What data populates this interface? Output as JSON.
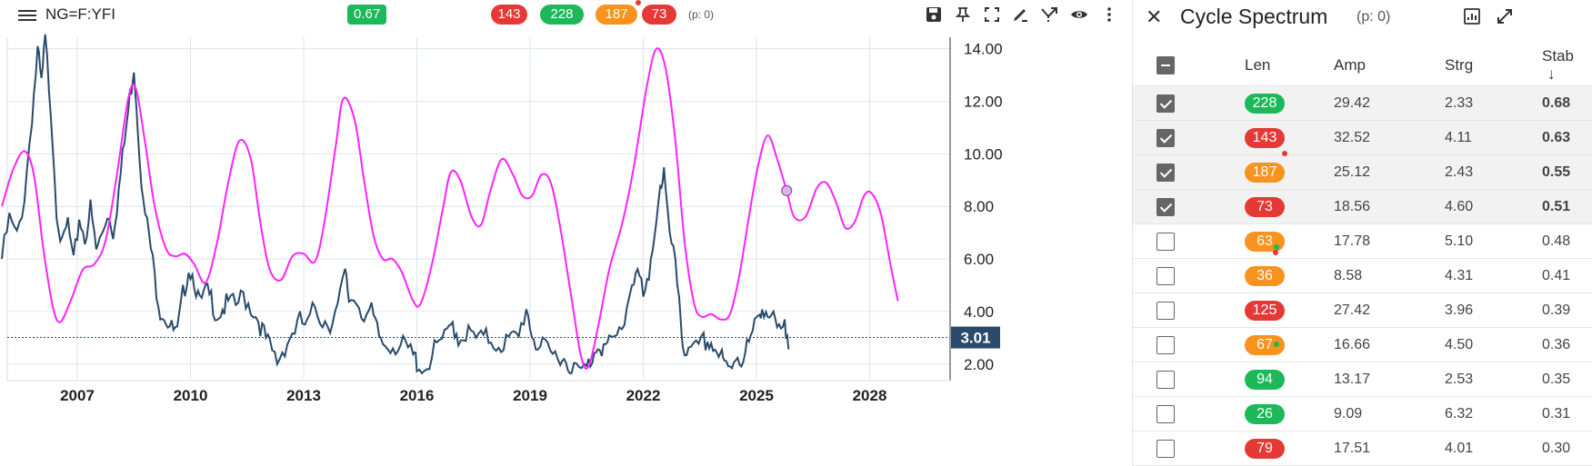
{
  "topbar": {
    "symbol": "NG=F:YFI",
    "score_badge": "0.67",
    "cycle_badges": [
      "143",
      "228",
      "187",
      "73"
    ],
    "cycle_badge_colors": [
      "#e53935",
      "#1cb85a",
      "#f7931e",
      "#e53935"
    ],
    "p_count": "(p: 0)",
    "tools": [
      "save-icon",
      "pin-icon",
      "fullscreen-icon",
      "draw-icon",
      "forecast-icon",
      "eye-icon",
      "more-icon"
    ]
  },
  "chart": {
    "y_ticks": [
      "14.00",
      "12.00",
      "10.00",
      "8.00",
      "6.00",
      "4.00",
      "2.00"
    ],
    "y_values": [
      14,
      12,
      10,
      8,
      6,
      4,
      2
    ],
    "x_ticks": [
      "2007",
      "2010",
      "2013",
      "2016",
      "2019",
      "2022",
      "2025",
      "2028"
    ],
    "current_price": "3.01",
    "price_color": "#2a4a6b",
    "cycle_color": "#ff22ff"
  },
  "panel": {
    "title": "Cycle Spectrum",
    "p_count": "(p: 0)",
    "headers": {
      "len": "Len",
      "amp": "Amp",
      "strg": "Strg",
      "stab": "Stab"
    },
    "rows": [
      {
        "checked": true,
        "len": "228",
        "color": "#1cb85a",
        "amp": "29.42",
        "strg": "2.33",
        "stab": "0.68",
        "bold": true
      },
      {
        "checked": true,
        "len": "143",
        "color": "#e53935",
        "amp": "32.52",
        "strg": "4.11",
        "stab": "0.63",
        "bold": true
      },
      {
        "checked": true,
        "len": "187",
        "color": "#f7931e",
        "amp": "25.12",
        "strg": "2.43",
        "stab": "0.55",
        "bold": true
      },
      {
        "checked": true,
        "len": "73",
        "color": "#e53935",
        "amp": "18.56",
        "strg": "4.60",
        "stab": "0.51",
        "bold": true
      },
      {
        "checked": false,
        "len": "63",
        "color": "#f7931e",
        "amp": "17.78",
        "strg": "5.10",
        "stab": "0.48",
        "bold": false
      },
      {
        "checked": false,
        "len": "36",
        "color": "#f7931e",
        "amp": "8.58",
        "strg": "4.31",
        "stab": "0.41",
        "bold": false
      },
      {
        "checked": false,
        "len": "125",
        "color": "#e53935",
        "amp": "27.42",
        "strg": "3.96",
        "stab": "0.39",
        "bold": false
      },
      {
        "checked": false,
        "len": "67",
        "color": "#f7931e",
        "amp": "16.66",
        "strg": "4.50",
        "stab": "0.36",
        "bold": false
      },
      {
        "checked": false,
        "len": "94",
        "color": "#1cb85a",
        "amp": "13.17",
        "strg": "2.53",
        "stab": "0.35",
        "bold": false
      },
      {
        "checked": false,
        "len": "26",
        "color": "#1cb85a",
        "amp": "9.09",
        "strg": "6.32",
        "stab": "0.31",
        "bold": false
      },
      {
        "checked": false,
        "len": "79",
        "color": "#e53935",
        "amp": "17.51",
        "strg": "4.01",
        "stab": "0.30",
        "bold": false
      }
    ]
  }
}
